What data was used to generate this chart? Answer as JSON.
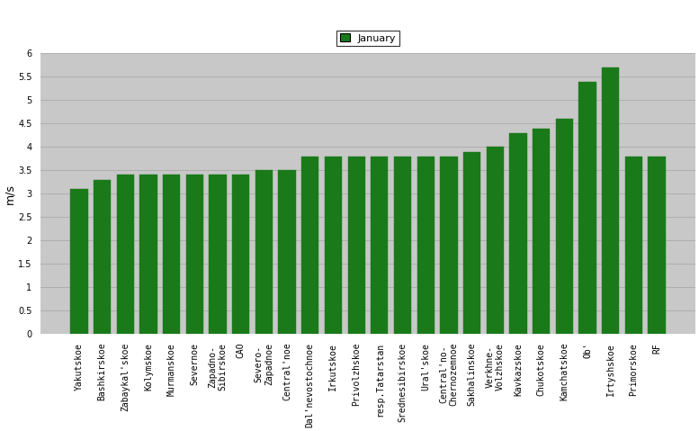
{
  "categories": [
    "Yakutskoe",
    "Bashkirskoe",
    "Zabaykal'skoe",
    "Kolymskoe",
    "Murmanskoe",
    "Severnoe",
    "Zapadno-\nSibirskoe",
    "CAO",
    "Severo-\nZapadnoe",
    "Central'noe",
    "Dal'nevostochnoe",
    "Irkutskoe",
    "Privolzhskoe",
    "resp.Tatarstan",
    "Srednesibirskoe",
    "Ural'skoe",
    "Central'no-\nChernozemnoe",
    "Sakhalinskoe",
    "Verkhne-\nVolzhskoe",
    "Kavkazskoe",
    "Chukotskoe",
    "Kamchatskoe",
    "Ob'",
    "Irtyshskoe",
    "Primorskoe",
    "RF"
  ],
  "values": [
    3.1,
    3.3,
    3.4,
    3.4,
    3.4,
    3.4,
    3.4,
    3.4,
    3.5,
    3.5,
    3.8,
    3.8,
    3.8,
    3.8,
    3.8,
    3.8,
    3.8,
    3.9,
    4.0,
    4.3,
    4.4,
    4.6,
    5.4,
    5.7,
    3.8,
    3.8
  ],
  "bar_color": "#1a7a1a",
  "bar_edge_color": "#1a7a1a",
  "figure_bg_color": "#ffffff",
  "plot_bg_color": "#c8c8c8",
  "ylabel": "m/s",
  "ylim": [
    0,
    6
  ],
  "ytick_values": [
    0,
    0.5,
    1.0,
    1.5,
    2.0,
    2.5,
    3.0,
    3.5,
    4.0,
    4.5,
    5.0,
    5.5,
    6.0
  ],
  "ytick_labels": [
    "0",
    "0.5",
    "1",
    "1.5",
    "2",
    "2.5",
    "3",
    "3.5",
    "4",
    "4.5",
    "5",
    "5.5",
    "6"
  ],
  "legend_label": "January",
  "legend_color": "#1a7a1a",
  "grid_color": "#aaaaaa",
  "tick_fontsize": 7,
  "ylabel_fontsize": 9,
  "legend_fontsize": 8
}
